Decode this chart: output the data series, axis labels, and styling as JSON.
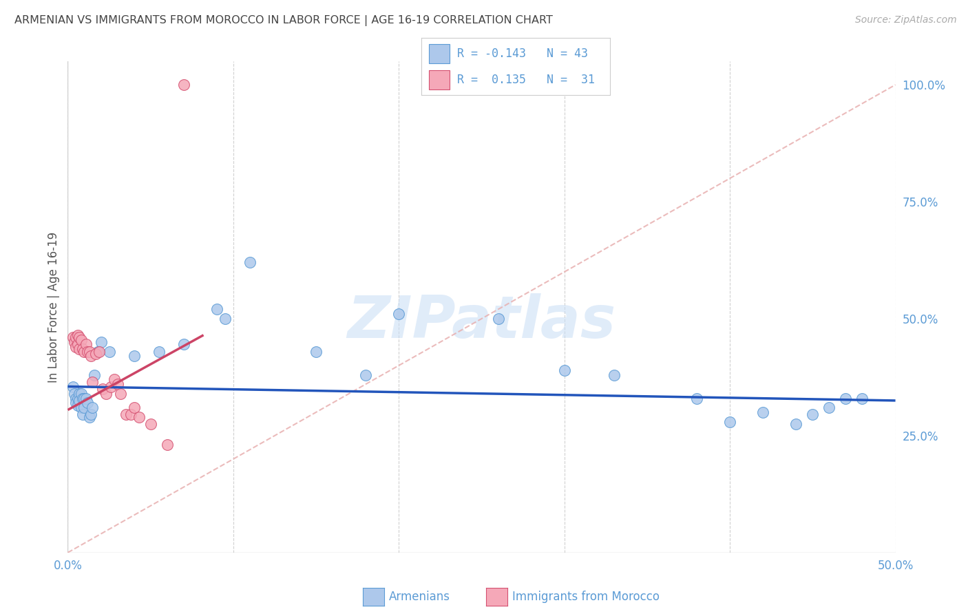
{
  "title": "ARMENIAN VS IMMIGRANTS FROM MOROCCO IN LABOR FORCE | AGE 16-19 CORRELATION CHART",
  "source": "Source: ZipAtlas.com",
  "ylabel": "In Labor Force | Age 16-19",
  "xlim": [
    0.0,
    0.5
  ],
  "ylim": [
    0.0,
    1.05
  ],
  "xtick_positions": [
    0.0,
    0.1,
    0.2,
    0.3,
    0.4,
    0.5
  ],
  "xtick_labels": [
    "0.0%",
    "",
    "",
    "",
    "",
    "50.0%"
  ],
  "ytick_right_positions": [
    0.25,
    0.5,
    0.75,
    1.0
  ],
  "ytick_right_labels": [
    "25.0%",
    "50.0%",
    "75.0%",
    "100.0%"
  ],
  "title_color": "#444444",
  "source_color": "#aaaaaa",
  "axis_tick_color": "#5b9bd5",
  "ylabel_color": "#555555",
  "background_color": "#ffffff",
  "grid_color": "#d0d0d0",
  "legend_R1": "-0.143",
  "legend_N1": "43",
  "legend_R2": "0.135",
  "legend_N2": "31",
  "armenian_fill": "#adc8eb",
  "armenian_edge": "#5b9bd5",
  "morocco_fill": "#f5a8b8",
  "morocco_edge": "#d45070",
  "trend_blue_color": "#2255bb",
  "trend_pink_color": "#cc4466",
  "diag_color": "#e8b0b0",
  "watermark_color": "#c8ddf5",
  "watermark_text": "ZIPatlas",
  "arm_trend_x0": 0.0,
  "arm_trend_x1": 0.5,
  "arm_trend_y0": 0.355,
  "arm_trend_y1": 0.325,
  "mor_trend_x0": 0.0,
  "mor_trend_x1": 0.082,
  "mor_trend_y0": 0.305,
  "mor_trend_y1": 0.465,
  "armenians_x": [
    0.003,
    0.004,
    0.005,
    0.005,
    0.006,
    0.006,
    0.007,
    0.007,
    0.008,
    0.008,
    0.009,
    0.009,
    0.01,
    0.01,
    0.011,
    0.012,
    0.013,
    0.014,
    0.015,
    0.016,
    0.018,
    0.02,
    0.025,
    0.04,
    0.055,
    0.07,
    0.09,
    0.095,
    0.11,
    0.15,
    0.18,
    0.2,
    0.26,
    0.3,
    0.33,
    0.38,
    0.4,
    0.42,
    0.44,
    0.45,
    0.46,
    0.47,
    0.48
  ],
  "armenians_y": [
    0.355,
    0.34,
    0.33,
    0.32,
    0.33,
    0.315,
    0.34,
    0.325,
    0.34,
    0.31,
    0.33,
    0.295,
    0.33,
    0.31,
    0.33,
    0.32,
    0.29,
    0.295,
    0.31,
    0.38,
    0.43,
    0.45,
    0.43,
    0.42,
    0.43,
    0.445,
    0.52,
    0.5,
    0.62,
    0.43,
    0.38,
    0.51,
    0.5,
    0.39,
    0.38,
    0.33,
    0.28,
    0.3,
    0.275,
    0.295,
    0.31,
    0.33,
    0.33
  ],
  "morocco_x": [
    0.003,
    0.004,
    0.005,
    0.005,
    0.006,
    0.006,
    0.007,
    0.007,
    0.008,
    0.009,
    0.01,
    0.011,
    0.012,
    0.013,
    0.014,
    0.015,
    0.017,
    0.019,
    0.021,
    0.023,
    0.026,
    0.028,
    0.03,
    0.032,
    0.035,
    0.038,
    0.04,
    0.043,
    0.05,
    0.06,
    0.07
  ],
  "morocco_y": [
    0.46,
    0.45,
    0.46,
    0.44,
    0.465,
    0.445,
    0.46,
    0.435,
    0.455,
    0.435,
    0.43,
    0.445,
    0.43,
    0.43,
    0.42,
    0.365,
    0.425,
    0.43,
    0.35,
    0.34,
    0.355,
    0.37,
    0.36,
    0.34,
    0.295,
    0.295,
    0.31,
    0.29,
    0.275,
    0.23,
    1.0
  ]
}
